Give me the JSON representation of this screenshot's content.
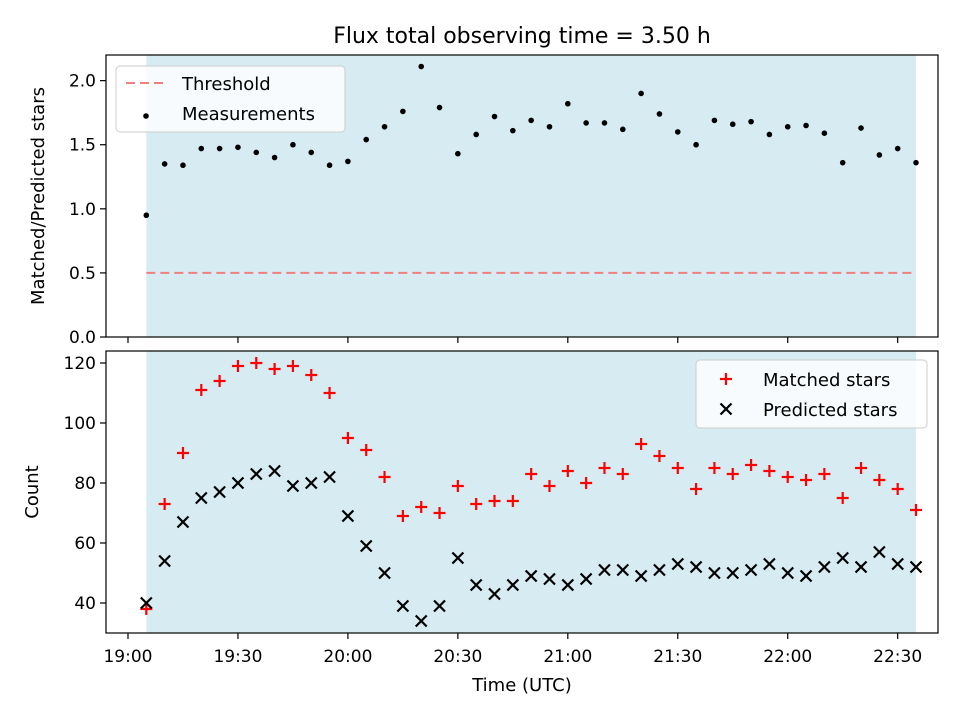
{
  "title": "Flux total observing time = 3.50 h",
  "colors": {
    "band": "#add8e6",
    "threshold": "#f08080",
    "measurements": "#000000",
    "matched": "#ff0000",
    "predicted": "#000000"
  },
  "chart_data": [
    {
      "type": "scatter",
      "name": "ratio",
      "ylabel": "Matched/Predicted stars",
      "ylim": [
        0,
        2.2
      ],
      "yticks": [
        "0.0",
        "0.5",
        "1.0",
        "1.5",
        "2.0"
      ],
      "xlim": [
        "18:54",
        "22:41"
      ],
      "shaded_span": [
        "19:05",
        "22:35"
      ],
      "threshold": 0.5,
      "legend": {
        "location": "top-left",
        "threshold_label": "Threshold",
        "measurements_label": "Measurements"
      },
      "x": [
        "19:05",
        "19:10",
        "19:15",
        "19:20",
        "19:25",
        "19:30",
        "19:35",
        "19:40",
        "19:45",
        "19:50",
        "19:55",
        "20:00",
        "20:05",
        "20:10",
        "20:15",
        "20:20",
        "20:25",
        "20:30",
        "20:35",
        "20:40",
        "20:45",
        "20:50",
        "20:55",
        "21:00",
        "21:05",
        "21:10",
        "21:15",
        "21:20",
        "21:25",
        "21:30",
        "21:35",
        "21:40",
        "21:45",
        "21:50",
        "21:55",
        "22:00",
        "22:05",
        "22:10",
        "22:15",
        "22:20",
        "22:25",
        "22:30",
        "22:35"
      ],
      "values": [
        0.95,
        1.35,
        1.34,
        1.47,
        1.47,
        1.48,
        1.44,
        1.4,
        1.5,
        1.44,
        1.34,
        1.37,
        1.54,
        1.64,
        1.76,
        2.11,
        1.79,
        1.43,
        1.58,
        1.72,
        1.61,
        1.69,
        1.64,
        1.82,
        1.67,
        1.67,
        1.62,
        1.9,
        1.74,
        1.6,
        1.5,
        1.69,
        1.66,
        1.68,
        1.58,
        1.64,
        1.65,
        1.59,
        1.36,
        1.63,
        1.42,
        1.47,
        1.36
      ]
    },
    {
      "type": "scatter",
      "name": "counts",
      "xlabel": "Time (UTC)",
      "ylabel": "Count",
      "ylim": [
        30,
        124
      ],
      "yticks": [
        "40",
        "60",
        "80",
        "100",
        "120"
      ],
      "xlim": [
        "18:54",
        "22:41"
      ],
      "xticks": [
        "19:00",
        "19:30",
        "20:00",
        "20:30",
        "21:00",
        "21:30",
        "22:00",
        "22:30"
      ],
      "shaded_span": [
        "19:05",
        "22:35"
      ],
      "legend": {
        "location": "top-right"
      },
      "x": [
        "19:05",
        "19:10",
        "19:15",
        "19:20",
        "19:25",
        "19:30",
        "19:35",
        "19:40",
        "19:45",
        "19:50",
        "19:55",
        "20:00",
        "20:05",
        "20:10",
        "20:15",
        "20:20",
        "20:25",
        "20:30",
        "20:35",
        "20:40",
        "20:45",
        "20:50",
        "20:55",
        "21:00",
        "21:05",
        "21:10",
        "21:15",
        "21:20",
        "21:25",
        "21:30",
        "21:35",
        "21:40",
        "21:45",
        "21:50",
        "21:55",
        "22:00",
        "22:05",
        "22:10",
        "22:15",
        "22:20",
        "22:25",
        "22:30",
        "22:35"
      ],
      "series": [
        {
          "name": "Matched stars",
          "marker": "plus",
          "values": [
            38,
            73,
            90,
            111,
            114,
            119,
            120,
            118,
            119,
            116,
            110,
            95,
            91,
            82,
            69,
            72,
            70,
            79,
            73,
            74,
            74,
            83,
            79,
            84,
            80,
            85,
            83,
            93,
            89,
            85,
            78,
            85,
            83,
            86,
            84,
            82,
            81,
            83,
            75,
            85,
            81,
            78,
            71
          ]
        },
        {
          "name": "Predicted stars",
          "marker": "x",
          "values": [
            40,
            54,
            67,
            75,
            77,
            80,
            83,
            84,
            79,
            80,
            82,
            69,
            59,
            50,
            39,
            34,
            39,
            55,
            46,
            43,
            46,
            49,
            48,
            46,
            48,
            51,
            51,
            49,
            51,
            53,
            52,
            50,
            50,
            51,
            53,
            50,
            49,
            52,
            55,
            52,
            57,
            53,
            52
          ]
        }
      ]
    }
  ]
}
